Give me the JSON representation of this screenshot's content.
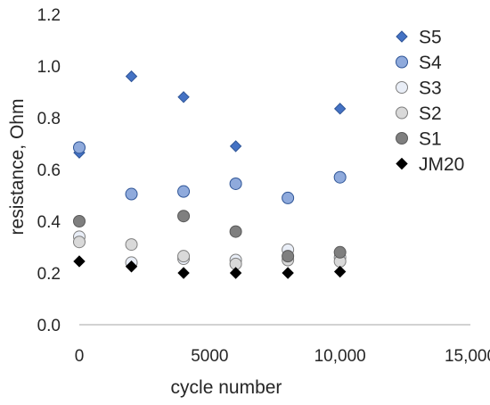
{
  "chart_data": {
    "type": "scatter",
    "xlabel": "cycle number",
    "ylabel": "resistance, Ohm",
    "xlim": [
      0,
      15000
    ],
    "ylim": [
      0,
      1.2
    ],
    "x_ticks": [
      0,
      5000,
      10000,
      15000
    ],
    "x_tick_labels": [
      "0",
      "5000",
      "10,000",
      "15,000"
    ],
    "y_ticks": [
      0,
      0.2,
      0.4,
      0.6,
      0.8,
      1.0,
      1.2
    ],
    "y_tick_labels": [
      "0.0",
      "0.2",
      "0.4",
      "0.6",
      "0.8",
      "1.0",
      "1.2"
    ],
    "grid": false,
    "legend_position": "right",
    "series": [
      {
        "name": "S5",
        "marker": "diamond",
        "fill": "#4472C4",
        "stroke": "#2F5597",
        "points": [
          [
            0,
            0.665
          ],
          [
            2000,
            0.96
          ],
          [
            4000,
            0.88
          ],
          [
            6000,
            0.69
          ],
          [
            10000,
            0.835
          ]
        ]
      },
      {
        "name": "S4",
        "marker": "circle",
        "fill": "#8FAADC",
        "stroke": "#2F5597",
        "points": [
          [
            0,
            0.685
          ],
          [
            2000,
            0.505
          ],
          [
            4000,
            0.515
          ],
          [
            6000,
            0.545
          ],
          [
            8000,
            0.49
          ],
          [
            10000,
            0.57
          ]
        ]
      },
      {
        "name": "S3",
        "marker": "circle",
        "fill": "#E9EEF7",
        "stroke": "#7F7F7F",
        "points": [
          [
            0,
            0.34
          ],
          [
            2000,
            0.24
          ],
          [
            4000,
            0.255
          ],
          [
            6000,
            0.25
          ],
          [
            8000,
            0.29
          ],
          [
            10000,
            0.26
          ]
        ]
      },
      {
        "name": "S2",
        "marker": "circle",
        "fill": "#D9D9D9",
        "stroke": "#7F7F7F",
        "points": [
          [
            0,
            0.32
          ],
          [
            2000,
            0.31
          ],
          [
            4000,
            0.265
          ],
          [
            6000,
            0.235
          ],
          [
            8000,
            0.25
          ],
          [
            10000,
            0.245
          ]
        ]
      },
      {
        "name": "S1",
        "marker": "circle",
        "fill": "#7F7F7F",
        "stroke": "#595959",
        "points": [
          [
            0,
            0.4
          ],
          [
            4000,
            0.42
          ],
          [
            6000,
            0.36
          ],
          [
            8000,
            0.265
          ],
          [
            10000,
            0.28
          ]
        ]
      },
      {
        "name": "JM20",
        "marker": "diamond",
        "fill": "#000000",
        "stroke": "#000000",
        "points": [
          [
            0,
            0.245
          ],
          [
            2000,
            0.225
          ],
          [
            4000,
            0.2
          ],
          [
            6000,
            0.2
          ],
          [
            8000,
            0.2
          ],
          [
            10000,
            0.205
          ]
        ]
      }
    ]
  }
}
